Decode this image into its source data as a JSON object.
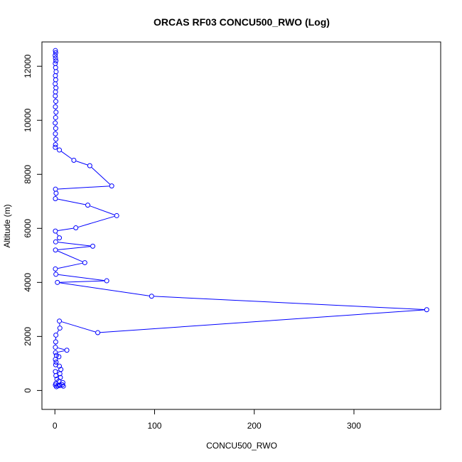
{
  "chart_data": {
    "type": "line",
    "title": "ORCAS RF03 CONCU500_RWO (Log)",
    "xlabel": "CONCU500_RWO",
    "ylabel": "Altitude (m)",
    "xlim": [
      -13,
      387
    ],
    "ylim": [
      -700,
      12900
    ],
    "xticks": [
      0,
      100,
      200,
      300
    ],
    "yticks": [
      0,
      2000,
      4000,
      6000,
      8000,
      10000,
      12000
    ],
    "grid": false,
    "legend": "none",
    "series": [
      {
        "color": "#0000ff",
        "marker": "open-circle",
        "points": [
          [
            0.5,
            12580
          ],
          [
            0.8,
            12500
          ],
          [
            0.3,
            12400
          ],
          [
            0.6,
            12300
          ],
          [
            1.0,
            12200
          ],
          [
            0.4,
            12100
          ],
          [
            0.7,
            11950
          ],
          [
            1.2,
            11800
          ],
          [
            0.5,
            11650
          ],
          [
            0.8,
            11500
          ],
          [
            0.3,
            11350
          ],
          [
            1.0,
            11200
          ],
          [
            0.6,
            11050
          ],
          [
            0.4,
            10900
          ],
          [
            0.9,
            10700
          ],
          [
            0.5,
            10500
          ],
          [
            1.1,
            10300
          ],
          [
            0.7,
            10100
          ],
          [
            0.3,
            9900
          ],
          [
            0.8,
            9700
          ],
          [
            0.5,
            9500
          ],
          [
            1.0,
            9300
          ],
          [
            0.6,
            9100
          ],
          [
            0.4,
            9000
          ],
          [
            4.5,
            8900
          ],
          [
            19.0,
            8520
          ],
          [
            35.0,
            8320
          ],
          [
            57.0,
            7570
          ],
          [
            0.6,
            7450
          ],
          [
            1.2,
            7300
          ],
          [
            0.5,
            7100
          ],
          [
            33.0,
            6860
          ],
          [
            62.0,
            6470
          ],
          [
            21.0,
            6020
          ],
          [
            0.5,
            5900
          ],
          [
            4.5,
            5650
          ],
          [
            0.8,
            5500
          ],
          [
            38.0,
            5340
          ],
          [
            0.6,
            5200
          ],
          [
            30.0,
            4730
          ],
          [
            0.5,
            4500
          ],
          [
            1.0,
            4300
          ],
          [
            52.0,
            4060
          ],
          [
            2.5,
            4000
          ],
          [
            97.0,
            3490
          ],
          [
            373.0,
            2990
          ],
          [
            43.0,
            2140
          ],
          [
            4.5,
            2570
          ],
          [
            5.0,
            2310
          ],
          [
            1.0,
            2050
          ],
          [
            0.8,
            1800
          ],
          [
            0.5,
            1600
          ],
          [
            12.0,
            1490
          ],
          [
            0.6,
            1400
          ],
          [
            1.5,
            1300
          ],
          [
            4.0,
            1250
          ],
          [
            0.5,
            1150
          ],
          [
            1.2,
            1050
          ],
          [
            0.8,
            950
          ],
          [
            4.5,
            900
          ],
          [
            6.0,
            780
          ],
          [
            0.5,
            700
          ],
          [
            5.0,
            620
          ],
          [
            1.0,
            550
          ],
          [
            5.5,
            480
          ],
          [
            2.0,
            420
          ],
          [
            4.0,
            350
          ],
          [
            8.0,
            290
          ],
          [
            1.0,
            260
          ],
          [
            7.5,
            210
          ],
          [
            3.0,
            170
          ],
          [
            8.5,
            160
          ],
          [
            1.5,
            140
          ],
          [
            5.0,
            180
          ],
          [
            0.5,
            200
          ]
        ]
      }
    ]
  }
}
